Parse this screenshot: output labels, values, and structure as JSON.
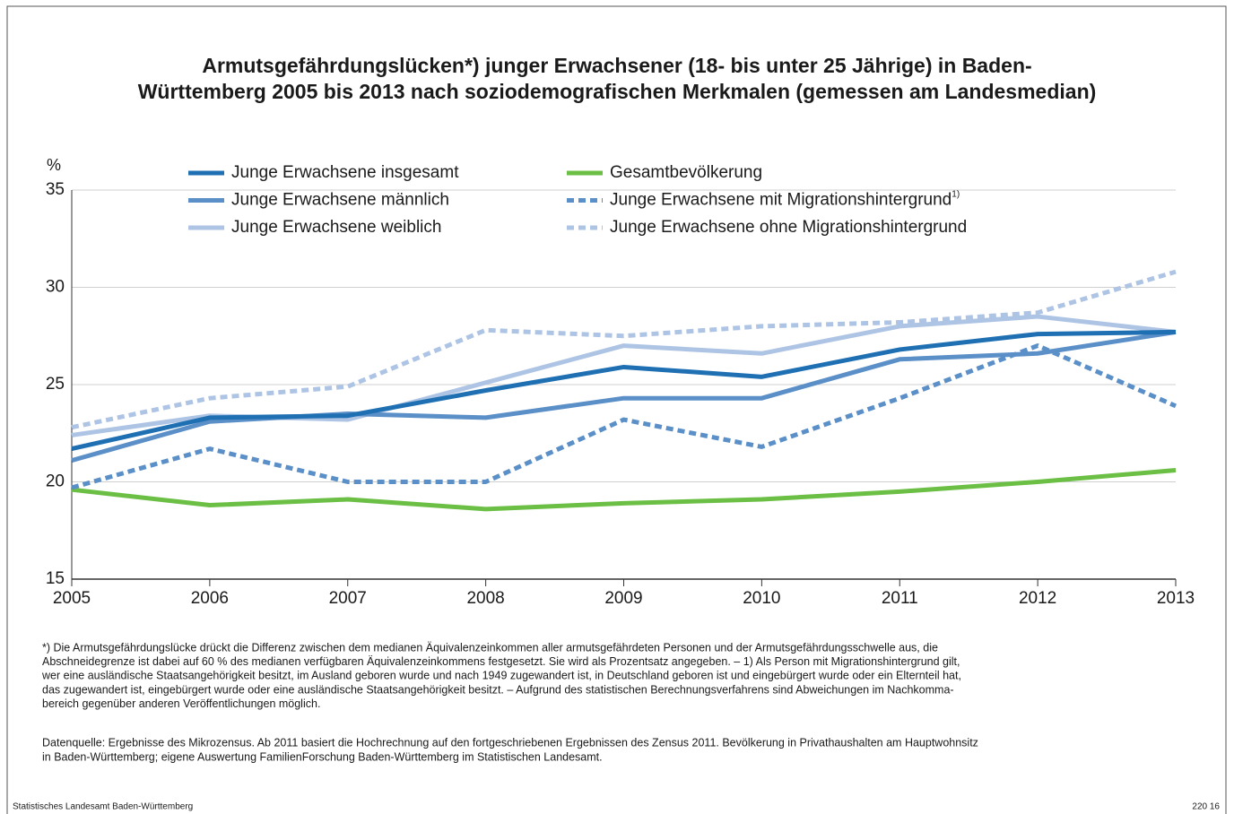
{
  "chart_data": {
    "type": "line",
    "title": [
      "Armutsgefährdungslücken*) junger Erwachsener (18- bis unter 25 Jährige) in Baden-",
      "Württemberg 2005 bis 2013 nach soziodemografischen Merkmalen (gemessen am Landesmedian)"
    ],
    "y_label": "%",
    "x": [
      2005,
      2006,
      2007,
      2008,
      2009,
      2010,
      2011,
      2012,
      2013
    ],
    "xlim": [
      2005,
      2013
    ],
    "xticks": [
      2005,
      2006,
      2007,
      2008,
      2009,
      2010,
      2011,
      2012,
      2013
    ],
    "ylim": [
      15,
      35
    ],
    "yticks": [
      15,
      20,
      25,
      30,
      35
    ],
    "grid": true,
    "series": [
      {
        "name": "Junge Erwachsene insgesamt",
        "color": "#1f6fb3",
        "dash": false,
        "values": [
          21.7,
          23.3,
          23.4,
          24.7,
          25.9,
          25.4,
          26.8,
          27.6,
          27.7
        ]
      },
      {
        "name": "Junge Erwachsene männlich",
        "color": "#5b8fc7",
        "dash": false,
        "values": [
          21.1,
          23.1,
          23.5,
          23.3,
          24.3,
          24.3,
          26.3,
          26.6,
          27.7
        ]
      },
      {
        "name": "Junge Erwachsene weiblich",
        "color": "#aec4e4",
        "dash": false,
        "values": [
          22.4,
          23.4,
          23.2,
          25.1,
          27.0,
          26.6,
          28.0,
          28.5,
          27.7
        ]
      },
      {
        "name": "Gesamtbevölkerung",
        "color": "#6cbf45",
        "dash": false,
        "values": [
          19.6,
          18.8,
          19.1,
          18.6,
          18.9,
          19.1,
          19.5,
          20.0,
          20.6
        ]
      },
      {
        "name": "Junge Erwachsene mit Migrationshintergrund",
        "note": "1)",
        "color": "#5b8fc7",
        "dash": true,
        "values": [
          19.7,
          21.7,
          20.0,
          20.0,
          23.2,
          21.8,
          24.3,
          27.0,
          23.9
        ]
      },
      {
        "name": "Junge Erwachsene ohne Migrationshintergrund",
        "color": "#aec4e4",
        "dash": true,
        "values": [
          22.8,
          24.3,
          24.9,
          27.8,
          27.5,
          28.0,
          28.2,
          28.7,
          30.8
        ]
      }
    ]
  },
  "footnote": [
    "*) Die Armutsgefährdungslücke drückt die Differenz zwischen dem medianen Äquivalenzeinkommen aller armutsgefährdeten Personen und der Armutsgefährdungsschwelle aus, die",
    "Abschneidegrenze ist dabei auf 60 % des medianen verfügbaren Äquivalenzeinkommens festgesetzt. Sie wird als Prozentsatz angegeben. – 1) Als Person mit Migrationshintergrund gilt,",
    "wer eine ausländische Staatsangehörigkeit besitzt, im Ausland geboren wurde und nach 1949 zugewandert ist, in Deutschland geboren ist und eingebürgert wurde oder ein Elternteil hat,",
    "das zugewandert ist, eingebürgert wurde oder eine ausländische Staatsangehörigkeit besitzt. – Aufgrund des  statistischen Berechnungsverfahrens sind Abweichungen im Nachkomma-",
    "bereich gegenüber anderen Veröffentlichungen möglich."
  ],
  "source": [
    "Datenquelle: Ergebnisse des Mikrozensus. Ab 2011 basiert die Hochrechnung auf den fortgeschriebenen Ergebnissen des Zensus 2011. Bevölkerung in Privathaushalten am Hauptwohnsitz",
    "in Baden-Württemberg; eigene Auswertung FamilienForschung Baden-Württemberg im Statistischen Landesamt."
  ],
  "publisher": "Statistisches Landesamt Baden-Württemberg",
  "code": "220 16"
}
